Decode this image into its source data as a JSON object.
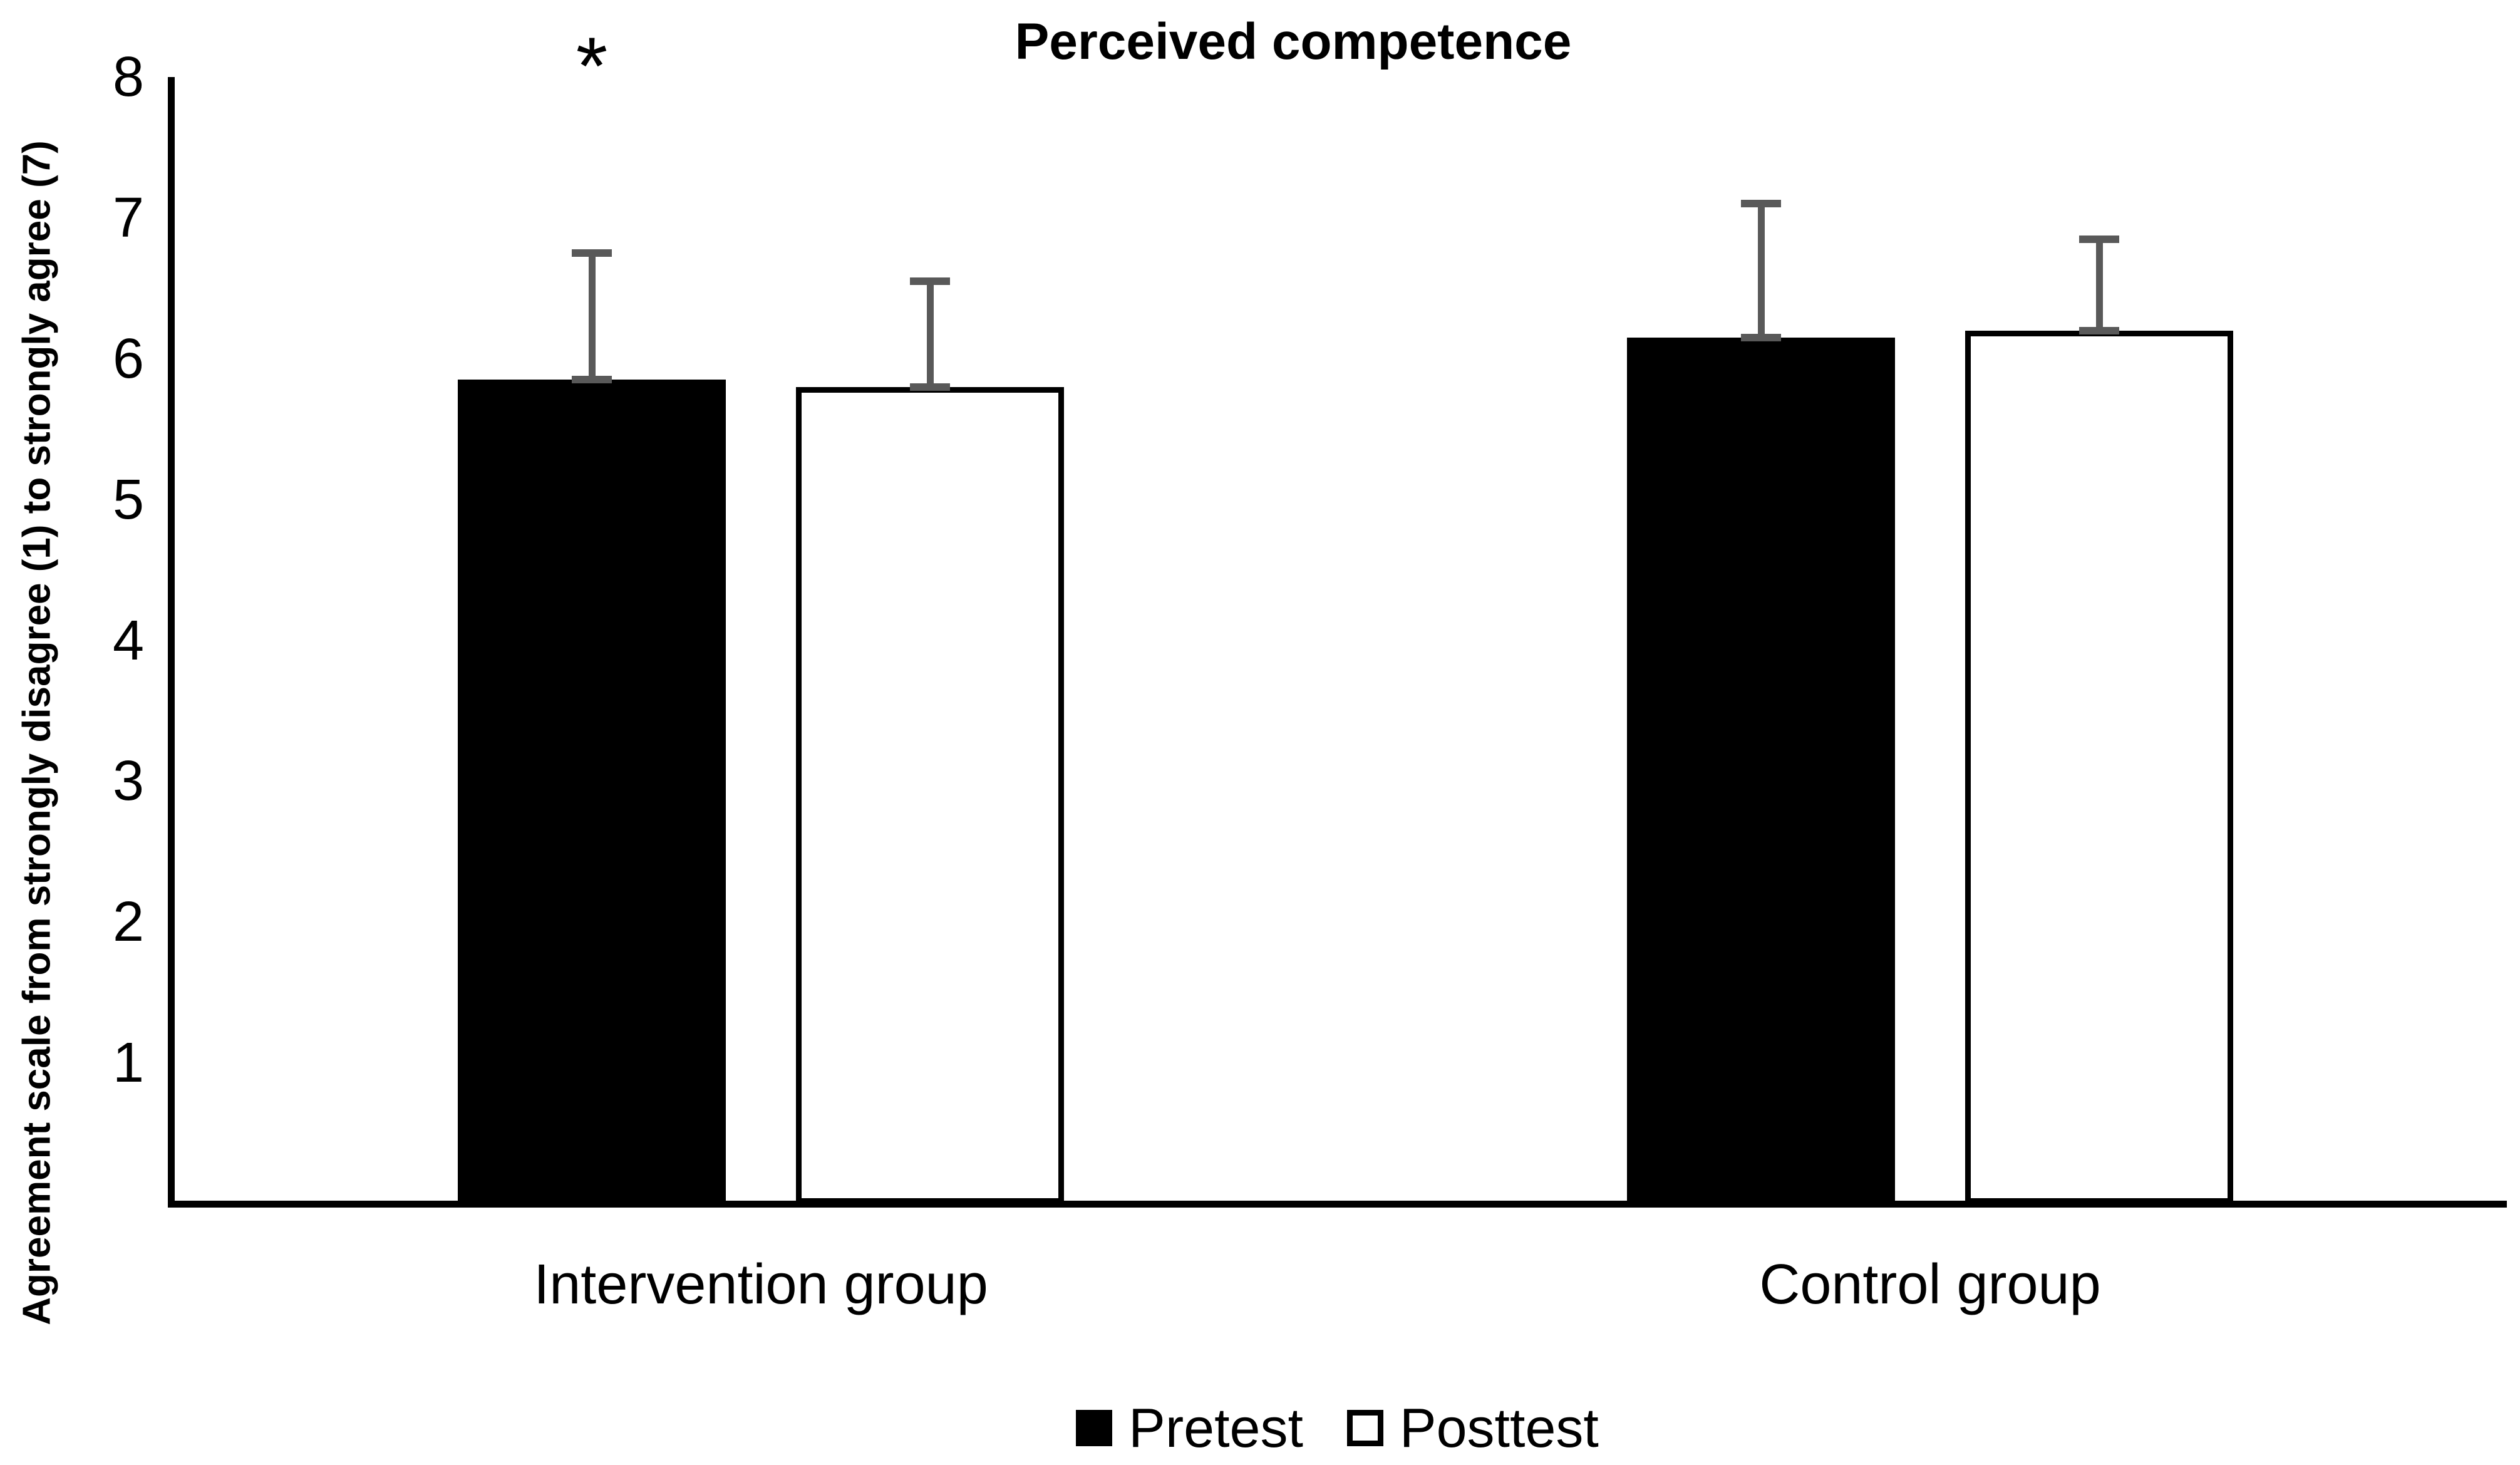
{
  "chart_data": {
    "type": "bar",
    "title": "Perceived competence",
    "ylabel": "Agreement scale from strongly disagree (1) to strongly agree (7)",
    "xlabel": "",
    "categories": [
      "Intervention group",
      "Control group"
    ],
    "series": [
      {
        "name": "Pretest",
        "values": [
          5.85,
          6.15
        ],
        "error_plus": [
          0.9,
          0.95
        ],
        "fill": "#000000",
        "border": "#000000"
      },
      {
        "name": "Posttest",
        "values": [
          5.8,
          6.2
        ],
        "error_plus": [
          0.75,
          0.65
        ],
        "fill": "#ffffff",
        "border": "#000000"
      }
    ],
    "ylim": [
      0,
      8
    ],
    "yticks": [
      1,
      2,
      3,
      4,
      5,
      6,
      7,
      8
    ],
    "grid": false,
    "legend_position": "bottom",
    "error_bar_color": "#595959",
    "bar_colors": {
      "pretest": "#000000",
      "posttest": "#ffffff"
    },
    "annotations": [
      {
        "text": "*",
        "category": "Intervention group",
        "series": "Pretest",
        "meaning": "significant difference"
      }
    ]
  }
}
